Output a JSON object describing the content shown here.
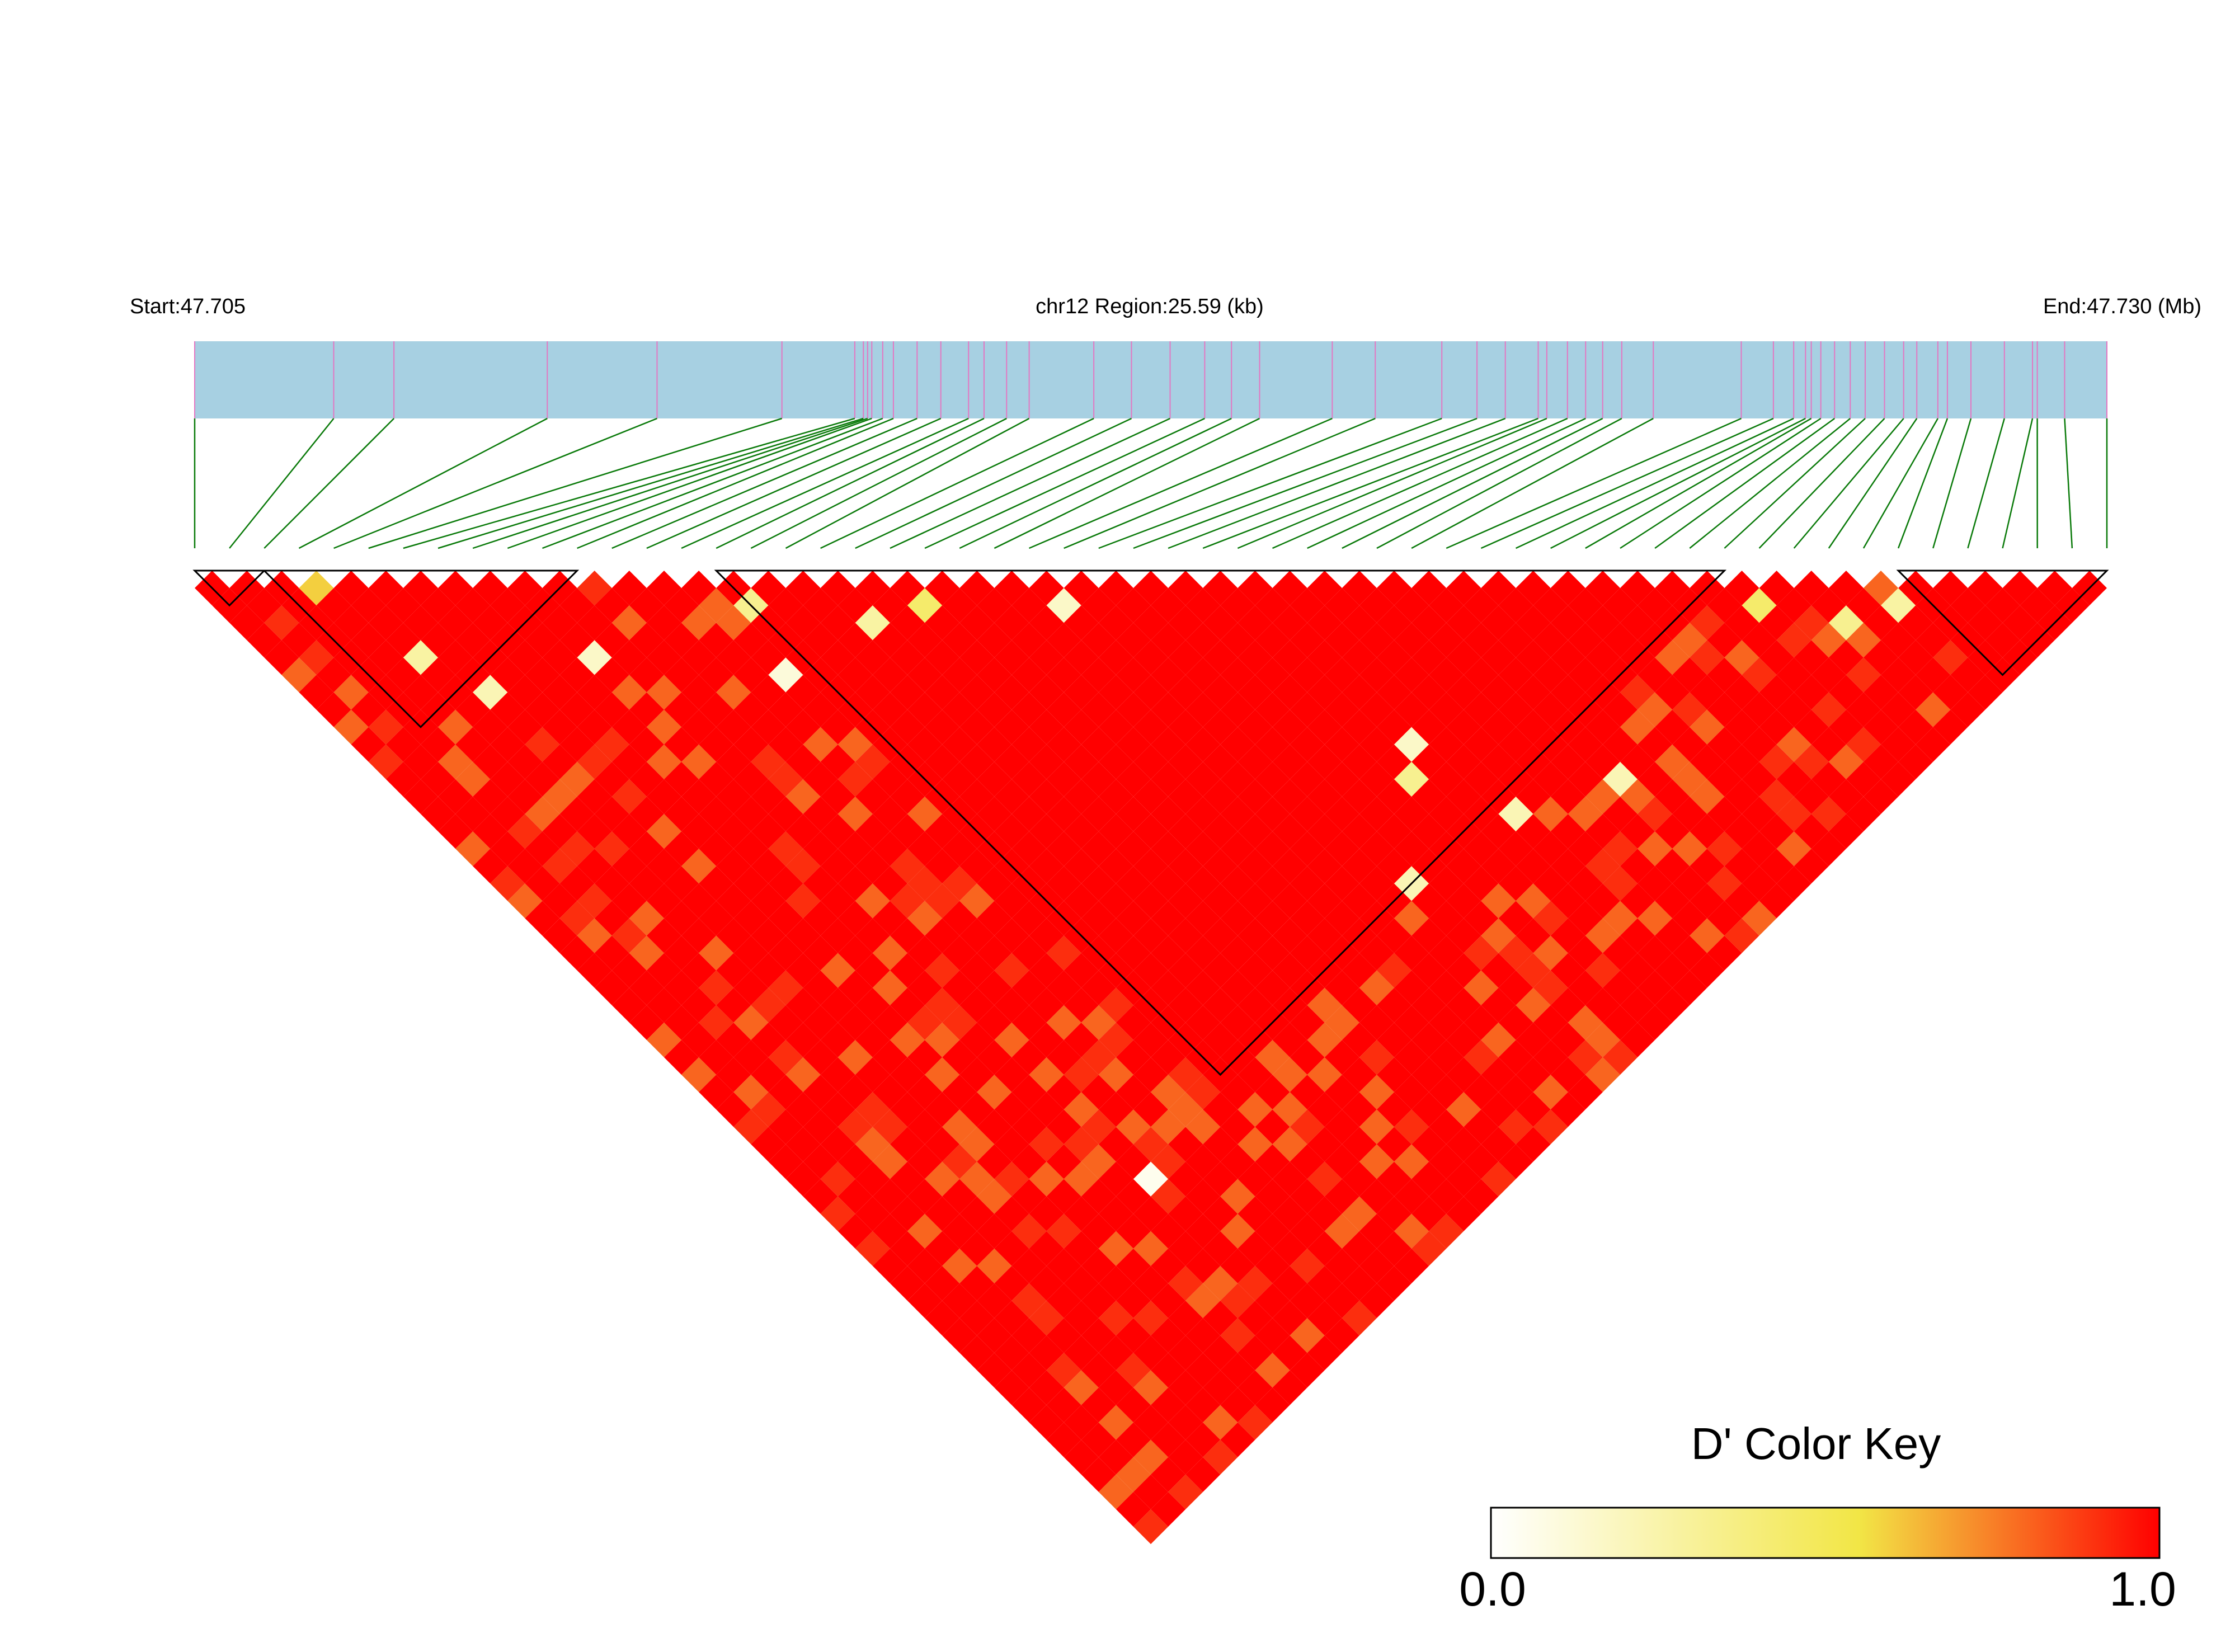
{
  "chart_data": {
    "type": "heatmap",
    "subtype": "LD heatmap (triangular)",
    "header": {
      "start_label": "Start:47.705",
      "region_label": "chr12 Region:25.59 (kb)",
      "end_label": "End:47.730 (Mb)"
    },
    "snp_count": 56,
    "snp_positions": [
      0.0,
      0.0727,
      0.1042,
      0.1844,
      0.2418,
      0.3071,
      0.3452,
      0.3497,
      0.3519,
      0.3541,
      0.3598,
      0.3654,
      0.3778,
      0.3902,
      0.4047,
      0.4128,
      0.4246,
      0.4364,
      0.4702,
      0.4899,
      0.5101,
      0.5282,
      0.5422,
      0.5569,
      0.5949,
      0.6174,
      0.6522,
      0.6706,
      0.6854,
      0.7026,
      0.7071,
      0.7179,
      0.7274,
      0.7363,
      0.7463,
      0.7628,
      0.8088,
      0.8256,
      0.8362,
      0.8424,
      0.8454,
      0.8504,
      0.8576,
      0.8658,
      0.8736,
      0.8837,
      0.8937,
      0.9006,
      0.9116,
      0.9166,
      0.9289,
      0.9464,
      0.9611,
      0.9636,
      0.9779,
      1.0
    ],
    "color_key": {
      "title": "D' Color Key",
      "min_label": "0.0",
      "max_label": "1.0",
      "colors": [
        "#ffffff",
        "#f2e646",
        "#ff0000"
      ]
    },
    "ld_blocks": [
      {
        "first_snp": 0,
        "last_snp": 2
      },
      {
        "first_snp": 2,
        "last_snp": 11
      },
      {
        "first_snp": 15,
        "last_snp": 44
      },
      {
        "first_snp": 49,
        "last_snp": 55
      }
    ],
    "notable_low_d_prime": [
      {
        "snp_i": 3,
        "snp_j": 4,
        "d_prime": 0.55
      },
      {
        "snp_i": 4,
        "snp_j": 9,
        "d_prime": 0.25
      },
      {
        "snp_i": 5,
        "snp_j": 12,
        "d_prime": 0.2
      },
      {
        "snp_i": 9,
        "snp_j": 14,
        "d_prime": 0.15
      },
      {
        "snp_i": 14,
        "snp_j": 20,
        "d_prime": 0.1
      },
      {
        "snp_i": 15,
        "snp_j": 17,
        "d_prime": 0.3
      },
      {
        "snp_i": 18,
        "snp_j": 21,
        "d_prime": 0.25
      },
      {
        "snp_i": 20,
        "snp_j": 22,
        "d_prime": 0.4
      },
      {
        "snp_i": 24,
        "snp_j": 26,
        "d_prime": 0.15
      },
      {
        "snp_i": 44,
        "snp_j": 46,
        "d_prime": 0.4
      },
      {
        "snp_i": 46,
        "snp_j": 49,
        "d_prime": 0.3
      },
      {
        "snp_i": 48,
        "snp_j": 50,
        "d_prime": 0.25
      },
      {
        "snp_i": 29,
        "snp_j": 41,
        "d_prime": 0.3
      },
      {
        "snp_i": 30,
        "snp_j": 40,
        "d_prime": 0.15
      },
      {
        "snp_i": 26,
        "snp_j": 44,
        "d_prime": 0.2
      },
      {
        "snp_i": 31,
        "snp_j": 45,
        "d_prime": 0.2
      },
      {
        "snp_i": 35,
        "snp_j": 47,
        "d_prime": 0.2
      },
      {
        "snp_i": 10,
        "snp_j": 45,
        "d_prime": 0.05
      }
    ]
  },
  "colors": {
    "gene_bar": "#a7d0e2",
    "snp_tick": "#e377c2",
    "snp_connector": "#0a7a0a",
    "block_outline": "#000000"
  }
}
